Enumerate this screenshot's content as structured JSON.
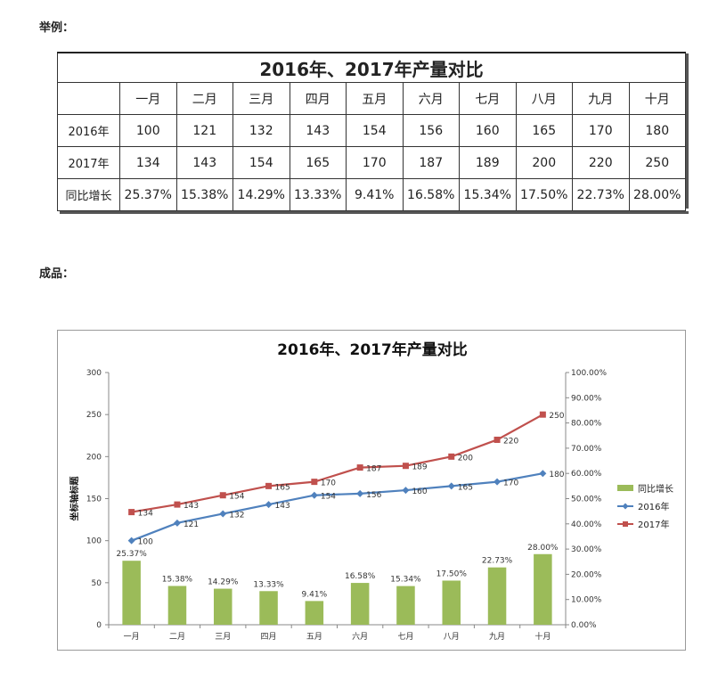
{
  "labels": {
    "example": "举例：",
    "result": "成品："
  },
  "table": {
    "title": "2016年、2017年产量对比",
    "months": [
      "一月",
      "二月",
      "三月",
      "四月",
      "五月",
      "六月",
      "七月",
      "八月",
      "九月",
      "十月"
    ],
    "rows": [
      {
        "label": "2016年",
        "values": [
          "100",
          "121",
          "132",
          "143",
          "154",
          "156",
          "160",
          "165",
          "170",
          "180"
        ]
      },
      {
        "label": "2017年",
        "values": [
          "134",
          "143",
          "154",
          "165",
          "170",
          "187",
          "189",
          "200",
          "220",
          "250"
        ]
      },
      {
        "label": "同比增长",
        "values": [
          "25.37%",
          "15.38%",
          "14.29%",
          "13.33%",
          "9.41%",
          "16.58%",
          "15.34%",
          "17.50%",
          "22.73%",
          "28.00%"
        ]
      }
    ]
  },
  "chart_data": {
    "type": "bar",
    "title": "2016年、2017年产量对比",
    "ylabel": "坐标轴标题",
    "categories": [
      "一月",
      "二月",
      "三月",
      "四月",
      "五月",
      "六月",
      "七月",
      "八月",
      "九月",
      "十月"
    ],
    "ylim": [
      0,
      300
    ],
    "yticks": [
      0,
      50,
      100,
      150,
      200,
      250,
      300
    ],
    "y2lim": [
      0,
      100
    ],
    "y2ticks": [
      "0.00%",
      "10.00%",
      "20.00%",
      "30.00%",
      "40.00%",
      "50.00%",
      "60.00%",
      "70.00%",
      "80.00%",
      "90.00%",
      "100.00%"
    ],
    "legend_position": "right",
    "grid": false,
    "series": [
      {
        "name": "同比增长",
        "type": "bar",
        "axis": "secondary",
        "color": "#9bbb59",
        "values": [
          25.37,
          15.38,
          14.29,
          13.33,
          9.41,
          16.58,
          15.34,
          17.5,
          22.73,
          28.0
        ],
        "labels": [
          "25.37%",
          "15.38%",
          "14.29%",
          "13.33%",
          "9.41%",
          "16.58%",
          "15.34%",
          "17.50%",
          "22.73%",
          "28.00%"
        ]
      },
      {
        "name": "2016年",
        "type": "line",
        "axis": "primary",
        "color": "#4f81bd",
        "marker": "diamond",
        "values": [
          100,
          121,
          132,
          143,
          154,
          156,
          160,
          165,
          170,
          180
        ]
      },
      {
        "name": "2017年",
        "type": "line",
        "axis": "primary",
        "color": "#c0504d",
        "marker": "square",
        "values": [
          134,
          143,
          154,
          165,
          170,
          187,
          189,
          200,
          220,
          250
        ]
      }
    ]
  }
}
